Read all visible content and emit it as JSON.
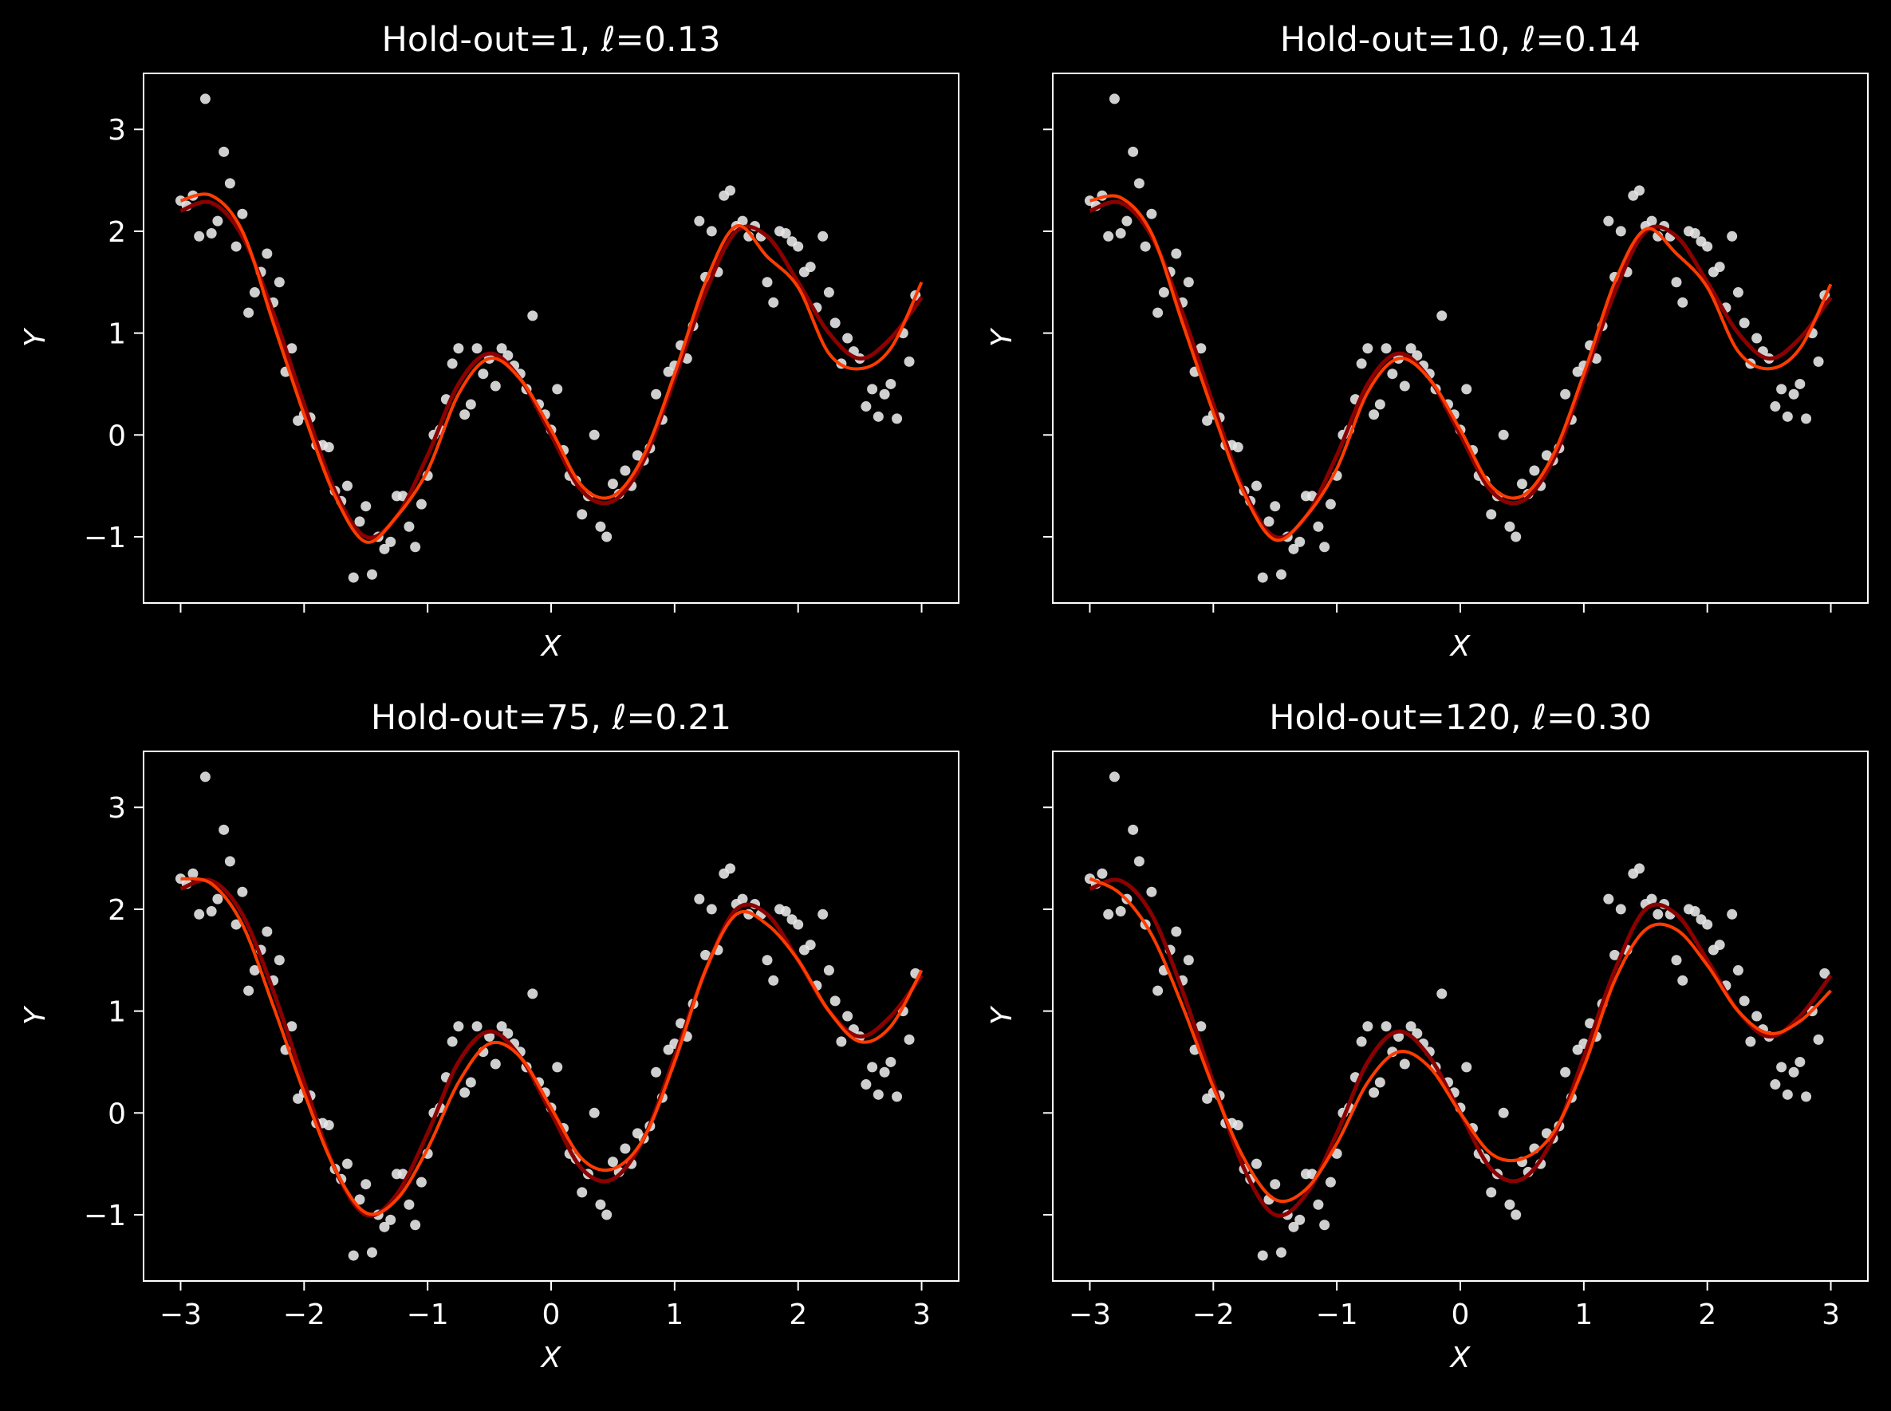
{
  "figure": {
    "background": "#000000"
  },
  "chart_data": [
    {
      "type": "scatter+line",
      "title": "Hold-out=1, ℓ=0.13",
      "xlabel": "X",
      "ylabel": "Y",
      "xlim": [
        -3.3,
        3.3
      ],
      "ylim": [
        -1.65,
        3.55
      ],
      "xticks": [
        "−3",
        "−2",
        "−1",
        "0",
        "1",
        "2",
        "3"
      ],
      "yticks": [
        "−1",
        "0",
        "1",
        "2",
        "3"
      ],
      "show_x_ticklabels": false,
      "show_y_ticklabels": true,
      "lines": [
        {
          "color": "#8b0000",
          "x": [
            -3,
            -2.75,
            -2.5,
            -2.25,
            -2,
            -1.75,
            -1.5,
            -1.25,
            -1,
            -0.75,
            -0.5,
            -0.25,
            0,
            0.25,
            0.5,
            0.75,
            1,
            1.25,
            1.5,
            1.75,
            2,
            2.25,
            2.5,
            2.75,
            3
          ],
          "y": [
            2.2,
            2.28,
            1.95,
            1.2,
            0.3,
            -0.55,
            -1.0,
            -0.8,
            -0.2,
            0.5,
            0.8,
            0.55,
            0.0,
            -0.55,
            -0.65,
            -0.25,
            0.55,
            1.4,
            2.0,
            1.95,
            1.5,
            1.0,
            0.75,
            0.95,
            1.35
          ]
        },
        {
          "color": "#ff3c00",
          "x": [
            -3,
            -2.75,
            -2.5,
            -2.25,
            -2,
            -1.75,
            -1.5,
            -1.25,
            -1,
            -0.75,
            -0.5,
            -0.25,
            0,
            0.25,
            0.5,
            0.75,
            1,
            1.25,
            1.5,
            1.75,
            2,
            2.25,
            2.5,
            2.75,
            3
          ],
          "y": [
            2.3,
            2.35,
            2.0,
            1.1,
            0.2,
            -0.6,
            -1.05,
            -0.8,
            -0.35,
            0.4,
            0.75,
            0.55,
            0.05,
            -0.5,
            -0.6,
            -0.2,
            0.6,
            1.5,
            2.05,
            1.75,
            1.45,
            0.8,
            0.65,
            0.85,
            1.5
          ]
        }
      ]
    },
    {
      "type": "scatter+line",
      "title": "Hold-out=10, ℓ=0.14",
      "xlabel": "X",
      "ylabel": "Y",
      "xlim": [
        -3.3,
        3.3
      ],
      "ylim": [
        -1.65,
        3.55
      ],
      "xticks": [
        "−3",
        "−2",
        "−1",
        "0",
        "1",
        "2",
        "3"
      ],
      "yticks": [
        "−1",
        "0",
        "1",
        "2",
        "3"
      ],
      "show_x_ticklabels": false,
      "show_y_ticklabels": false,
      "lines": [
        {
          "color": "#8b0000",
          "x": [
            -3,
            -2.75,
            -2.5,
            -2.25,
            -2,
            -1.75,
            -1.5,
            -1.25,
            -1,
            -0.75,
            -0.5,
            -0.25,
            0,
            0.25,
            0.5,
            0.75,
            1,
            1.25,
            1.5,
            1.75,
            2,
            2.25,
            2.5,
            2.75,
            3
          ],
          "y": [
            2.2,
            2.28,
            1.95,
            1.2,
            0.3,
            -0.55,
            -1.0,
            -0.8,
            -0.2,
            0.5,
            0.8,
            0.55,
            0.0,
            -0.55,
            -0.65,
            -0.25,
            0.55,
            1.4,
            2.0,
            1.95,
            1.5,
            1.0,
            0.75,
            0.95,
            1.35
          ]
        },
        {
          "color": "#ff3c00",
          "x": [
            -3,
            -2.75,
            -2.5,
            -2.25,
            -2,
            -1.75,
            -1.5,
            -1.25,
            -1,
            -0.75,
            -0.5,
            -0.25,
            0,
            0.25,
            0.5,
            0.75,
            1,
            1.25,
            1.5,
            1.75,
            2,
            2.25,
            2.5,
            2.75,
            3
          ],
          "y": [
            2.3,
            2.33,
            1.98,
            1.1,
            0.22,
            -0.58,
            -1.03,
            -0.8,
            -0.33,
            0.42,
            0.75,
            0.55,
            0.05,
            -0.5,
            -0.6,
            -0.2,
            0.6,
            1.5,
            2.02,
            1.78,
            1.45,
            0.82,
            0.65,
            0.85,
            1.48
          ]
        }
      ]
    },
    {
      "type": "scatter+line",
      "title": "Hold-out=75, ℓ=0.21",
      "xlabel": "X",
      "ylabel": "Y",
      "xlim": [
        -3.3,
        3.3
      ],
      "ylim": [
        -1.65,
        3.55
      ],
      "xticks": [
        "−3",
        "−2",
        "−1",
        "0",
        "1",
        "2",
        "3"
      ],
      "yticks": [
        "−1",
        "0",
        "1",
        "2",
        "3"
      ],
      "show_x_ticklabels": true,
      "show_y_ticklabels": true,
      "lines": [
        {
          "color": "#8b0000",
          "x": [
            -3,
            -2.75,
            -2.5,
            -2.25,
            -2,
            -1.75,
            -1.5,
            -1.25,
            -1,
            -0.75,
            -0.5,
            -0.25,
            0,
            0.25,
            0.5,
            0.75,
            1,
            1.25,
            1.5,
            1.75,
            2,
            2.25,
            2.5,
            2.75,
            3
          ],
          "y": [
            2.2,
            2.28,
            1.95,
            1.2,
            0.3,
            -0.55,
            -1.0,
            -0.8,
            -0.2,
            0.5,
            0.8,
            0.55,
            0.0,
            -0.55,
            -0.65,
            -0.25,
            0.55,
            1.4,
            2.0,
            1.95,
            1.5,
            1.0,
            0.75,
            0.95,
            1.35
          ]
        },
        {
          "color": "#ff3c00",
          "x": [
            -3,
            -2.75,
            -2.5,
            -2.25,
            -2,
            -1.75,
            -1.5,
            -1.25,
            -1,
            -0.75,
            -0.5,
            -0.25,
            0,
            0.25,
            0.5,
            0.75,
            1,
            1.25,
            1.5,
            1.75,
            2,
            2.25,
            2.5,
            2.75,
            3
          ],
          "y": [
            2.3,
            2.25,
            1.85,
            1.05,
            0.2,
            -0.55,
            -0.98,
            -0.85,
            -0.35,
            0.3,
            0.68,
            0.55,
            0.05,
            -0.45,
            -0.55,
            -0.25,
            0.5,
            1.4,
            1.95,
            1.85,
            1.5,
            1.0,
            0.7,
            0.85,
            1.4
          ]
        }
      ]
    },
    {
      "type": "scatter+line",
      "title": "Hold-out=120, ℓ=0.30",
      "xlabel": "X",
      "ylabel": "Y",
      "xlim": [
        -3.3,
        3.3
      ],
      "ylim": [
        -1.65,
        3.55
      ],
      "xticks": [
        "−3",
        "−2",
        "−1",
        "0",
        "1",
        "2",
        "3"
      ],
      "yticks": [
        "−1",
        "0",
        "1",
        "2",
        "3"
      ],
      "show_x_ticklabels": true,
      "show_y_ticklabels": false,
      "lines": [
        {
          "color": "#8b0000",
          "x": [
            -3,
            -2.75,
            -2.5,
            -2.25,
            -2,
            -1.75,
            -1.5,
            -1.25,
            -1,
            -0.75,
            -0.5,
            -0.25,
            0,
            0.25,
            0.5,
            0.75,
            1,
            1.25,
            1.5,
            1.75,
            2,
            2.25,
            2.5,
            2.75,
            3
          ],
          "y": [
            2.2,
            2.28,
            1.95,
            1.2,
            0.3,
            -0.55,
            -1.0,
            -0.8,
            -0.2,
            0.5,
            0.8,
            0.55,
            0.0,
            -0.55,
            -0.65,
            -0.25,
            0.55,
            1.4,
            2.0,
            1.95,
            1.5,
            1.0,
            0.75,
            0.95,
            1.35
          ]
        },
        {
          "color": "#ff3c00",
          "x": [
            -3,
            -2.75,
            -2.5,
            -2.25,
            -2,
            -1.75,
            -1.5,
            -1.25,
            -1,
            -0.75,
            -0.5,
            -0.25,
            0,
            0.25,
            0.5,
            0.75,
            1,
            1.25,
            1.5,
            1.75,
            2,
            2.25,
            2.5,
            2.75,
            3
          ],
          "y": [
            2.3,
            2.15,
            1.75,
            1.05,
            0.25,
            -0.45,
            -0.85,
            -0.75,
            -0.3,
            0.3,
            0.6,
            0.45,
            0.0,
            -0.4,
            -0.45,
            -0.2,
            0.45,
            1.3,
            1.8,
            1.8,
            1.45,
            1.0,
            0.78,
            0.9,
            1.2
          ]
        }
      ]
    }
  ],
  "points": {
    "color": "#e6e6e6",
    "x": [
      -3.0,
      -2.95,
      -2.9,
      -2.85,
      -2.8,
      -2.75,
      -2.7,
      -2.65,
      -2.6,
      -2.55,
      -2.5,
      -2.45,
      -2.4,
      -2.35,
      -2.3,
      -2.25,
      -2.2,
      -2.15,
      -2.1,
      -2.05,
      -2.0,
      -1.95,
      -1.9,
      -1.85,
      -1.8,
      -1.75,
      -1.7,
      -1.65,
      -1.6,
      -1.55,
      -1.5,
      -1.45,
      -1.4,
      -1.35,
      -1.3,
      -1.25,
      -1.2,
      -1.15,
      -1.1,
      -1.05,
      -1.0,
      -0.95,
      -0.9,
      -0.85,
      -0.8,
      -0.75,
      -0.7,
      -0.65,
      -0.6,
      -0.55,
      -0.5,
      -0.45,
      -0.4,
      -0.35,
      -0.3,
      -0.25,
      -0.2,
      -0.15,
      -0.1,
      -0.05,
      0.0,
      0.05,
      0.1,
      0.15,
      0.2,
      0.25,
      0.3,
      0.35,
      0.4,
      0.45,
      0.5,
      0.55,
      0.6,
      0.65,
      0.7,
      0.75,
      0.8,
      0.85,
      0.9,
      0.95,
      1.0,
      1.05,
      1.1,
      1.15,
      1.2,
      1.25,
      1.3,
      1.35,
      1.4,
      1.45,
      1.5,
      1.55,
      1.6,
      1.65,
      1.7,
      1.75,
      1.8,
      1.85,
      1.9,
      1.95,
      2.0,
      2.05,
      2.1,
      2.15,
      2.2,
      2.25,
      2.3,
      2.35,
      2.4,
      2.45,
      2.5,
      2.55,
      2.6,
      2.65,
      2.7,
      2.75,
      2.8,
      2.85,
      2.9,
      2.95
    ],
    "y": [
      2.3,
      2.25,
      2.35,
      1.95,
      3.3,
      1.98,
      2.1,
      2.78,
      2.47,
      1.85,
      2.17,
      1.2,
      1.4,
      1.6,
      1.78,
      1.3,
      1.5,
      0.62,
      0.85,
      0.14,
      0.2,
      0.17,
      -0.1,
      -0.1,
      -0.12,
      -0.55,
      -0.65,
      -0.5,
      -1.4,
      -0.85,
      -0.7,
      -1.37,
      -1.0,
      -1.12,
      -1.05,
      -0.6,
      -0.6,
      -0.9,
      -1.1,
      -0.68,
      -0.4,
      0.0,
      0.05,
      0.35,
      0.7,
      0.85,
      0.2,
      0.3,
      0.85,
      0.6,
      0.75,
      0.48,
      0.85,
      0.78,
      0.68,
      0.6,
      0.45,
      1.17,
      0.3,
      0.2,
      0.05,
      0.45,
      -0.15,
      -0.4,
      -0.45,
      -0.78,
      -0.6,
      0.0,
      -0.9,
      -1.0,
      -0.48,
      -0.58,
      -0.35,
      -0.5,
      -0.2,
      -0.25,
      -0.13,
      0.4,
      0.15,
      0.62,
      0.68,
      0.88,
      0.75,
      1.07,
      2.1,
      1.55,
      2.0,
      1.6,
      2.35,
      2.4,
      2.05,
      2.1,
      1.95,
      2.05,
      1.95,
      1.5,
      1.3,
      2.0,
      1.98,
      1.9,
      1.85,
      1.6,
      1.65,
      1.25,
      1.95,
      1.4,
      1.1,
      0.7,
      0.95,
      0.82,
      0.75,
      0.28,
      0.45,
      0.18,
      0.4,
      0.5,
      0.16,
      1.0,
      0.72,
      1.37
    ]
  }
}
